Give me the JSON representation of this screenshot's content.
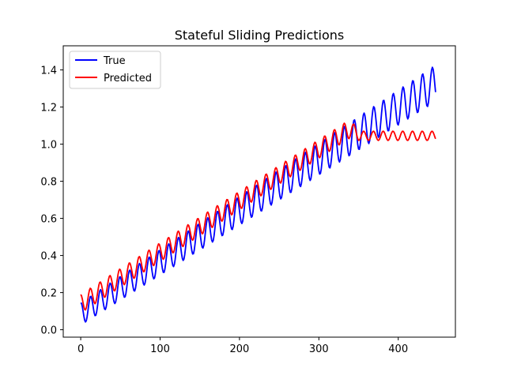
{
  "chart_data": {
    "type": "line",
    "title": "Stateful Sliding Predictions",
    "xlabel": "",
    "ylabel": "",
    "xlim": [
      -22,
      472
    ],
    "ylim": [
      -0.04,
      1.53
    ],
    "xticks": [
      0,
      100,
      200,
      300,
      400
    ],
    "yticks": [
      0.0,
      0.2,
      0.4,
      0.6,
      0.8,
      1.0,
      1.2,
      1.4
    ],
    "ytick_labels": [
      "0.0",
      "0.2",
      "0.4",
      "0.6",
      "0.8",
      "1.0",
      "1.2",
      "1.4"
    ],
    "grid": false,
    "legend_position": "top-left",
    "series": [
      {
        "name": "True",
        "color": "#0000ff",
        "model": {
          "x_start": 0,
          "x_end": 447,
          "step": 1,
          "baseline_start": 0.085,
          "baseline_slope": 0.00278,
          "amplitude_start": 0.06,
          "amplitude_slope": 8.5e-05,
          "period": 12.3,
          "phase": 1.5
        }
      },
      {
        "name": "Predicted",
        "color": "#ff0000",
        "model": {
          "x_start": 0,
          "x_end": 447,
          "step": 1,
          "baseline_start": 0.14,
          "baseline_slope": 0.00278,
          "amplitude": 0.05,
          "period": 12.3,
          "phase": 1.7,
          "plateau_x": 338,
          "plateau_level": 1.045,
          "plateau_amplitude": 0.025
        }
      }
    ]
  }
}
